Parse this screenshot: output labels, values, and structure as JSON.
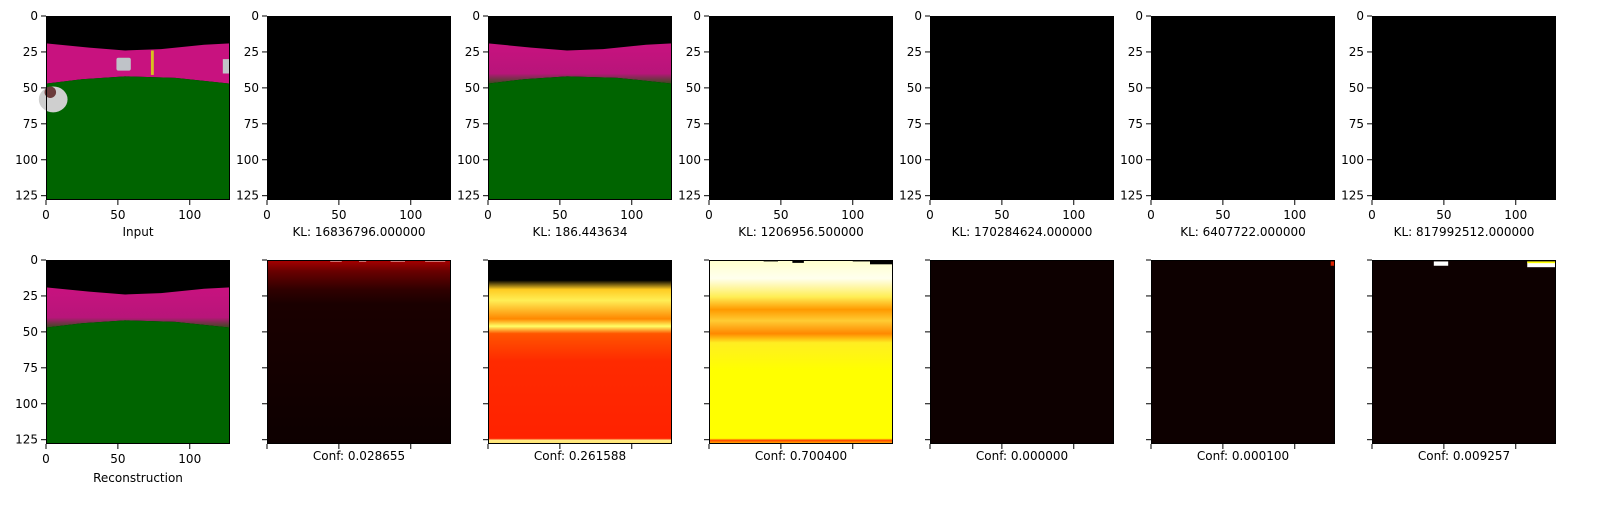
{
  "chart_data": {
    "type": "image-grid",
    "image_size": [
      128,
      128
    ],
    "xlim": [
      0,
      128
    ],
    "ylim": [
      128,
      0
    ],
    "x_ticks": [
      0,
      50,
      100
    ],
    "y_ticks": [
      0,
      25,
      50,
      75,
      100,
      125
    ],
    "top_row": [
      {
        "kind": "input",
        "caption": "Input"
      },
      {
        "kind": "black",
        "caption": "KL: 16836796.000000"
      },
      {
        "kind": "recon",
        "caption": "KL: 186.443634"
      },
      {
        "kind": "black",
        "caption": "KL: 1206956.500000"
      },
      {
        "kind": "black",
        "caption": "KL: 170284624.000000"
      },
      {
        "kind": "black",
        "caption": "KL: 6407722.000000"
      },
      {
        "kind": "black",
        "caption": "KL: 817992512.000000"
      }
    ],
    "bottom_row": [
      {
        "kind": "recon",
        "caption": "Reconstruction",
        "conf": null
      },
      {
        "kind": "heat-low",
        "caption": "Conf: 0.028655",
        "conf": 0.028655
      },
      {
        "kind": "heat-mid",
        "caption": "Conf: 0.261588",
        "conf": 0.261588
      },
      {
        "kind": "heat-high",
        "caption": "Conf: 0.700400",
        "conf": 0.7004
      },
      {
        "kind": "heat-zero",
        "caption": "Conf: 0.000000",
        "conf": 0.0
      },
      {
        "kind": "heat-zero-dot",
        "caption": "Conf: 0.000100",
        "conf": 0.0001
      },
      {
        "kind": "heat-zero-marks",
        "caption": "Conf: 0.009257",
        "conf": 0.009257
      }
    ],
    "colors": {
      "sky": "#000000",
      "wall": "#c8127f",
      "ground": "#006400",
      "heat_dark": "#0d0000",
      "heat_red": "#ff2200",
      "heat_yellow": "#ffff00"
    }
  }
}
